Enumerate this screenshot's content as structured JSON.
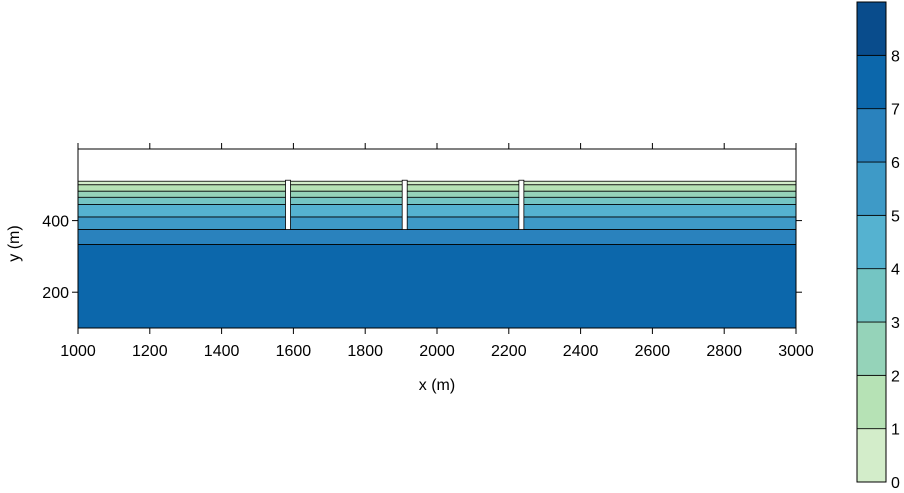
{
  "chart_data": {
    "type": "heatmap",
    "title": "",
    "xlabel": "x (m)",
    "ylabel": "y (m)",
    "xlim": [
      1000,
      3000
    ],
    "ylim": [
      100,
      600
    ],
    "x_ticks": [
      1000,
      1200,
      1400,
      1600,
      1800,
      2000,
      2200,
      2400,
      2600,
      2800,
      3000
    ],
    "y_ticks": [
      200,
      400
    ],
    "grid": false,
    "filled_contour_levels": [
      {
        "y_bottom": 500,
        "y_top": 510,
        "level": 0
      },
      {
        "y_bottom": 482,
        "y_top": 500,
        "level": 1
      },
      {
        "y_bottom": 465,
        "y_top": 482,
        "level": 2
      },
      {
        "y_bottom": 445,
        "y_top": 465,
        "level": 3
      },
      {
        "y_bottom": 410,
        "y_top": 445,
        "level": 4
      },
      {
        "y_bottom": 375,
        "y_top": 410,
        "level": 5
      },
      {
        "y_bottom": 333,
        "y_top": 375,
        "level": 6
      },
      {
        "y_bottom": 100,
        "y_top": 333,
        "level": 7
      }
    ],
    "wells": [
      {
        "x": 1585,
        "y_top": 510,
        "y_bottom": 375
      },
      {
        "x": 1910,
        "y_top": 510,
        "y_bottom": 375
      },
      {
        "x": 2235,
        "y_top": 510,
        "y_bottom": 375
      }
    ],
    "colorbar": {
      "ticks": [
        0,
        1,
        2,
        3,
        4,
        5,
        6,
        7,
        8
      ],
      "range": [
        0,
        9
      ],
      "colors": [
        "#d3edca",
        "#b6e2b5",
        "#95d3b9",
        "#74c5c3",
        "#55b2d0",
        "#3e9ac7",
        "#2a82bd",
        "#0c67ab",
        "#094c8c"
      ]
    }
  }
}
